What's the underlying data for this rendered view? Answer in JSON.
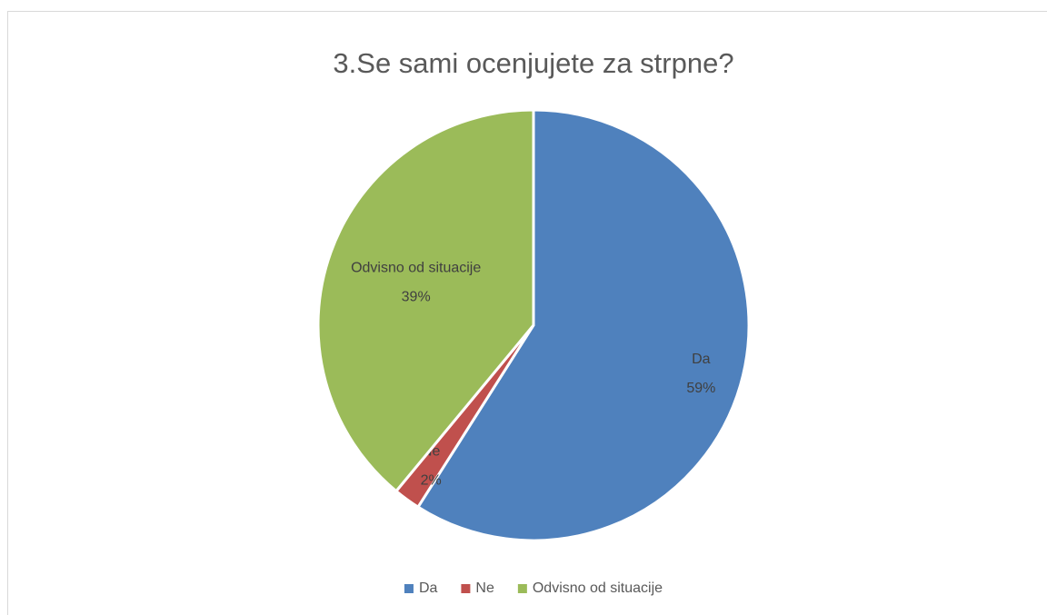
{
  "chart_data": {
    "type": "pie",
    "title": "3.Se sami ocenjujete za strpne?",
    "categories": [
      "Da",
      "Ne",
      "Odvisno od situacije"
    ],
    "values": [
      59,
      2,
      39
    ],
    "value_labels": [
      "59%",
      "2%",
      "39%"
    ],
    "colors": [
      "#4f81bd",
      "#c0504d",
      "#9bbb59"
    ],
    "legend": "bottom"
  }
}
